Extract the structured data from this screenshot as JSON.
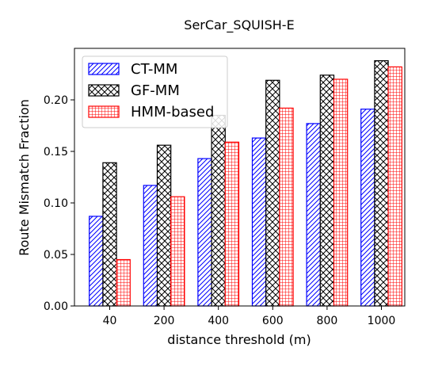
{
  "chart_data": {
    "type": "bar",
    "title": "SerCar_SQUISH-E",
    "xlabel": "distance threshold (m)",
    "ylabel": "Route Mismatch Fraction",
    "categories": [
      "40",
      "200",
      "400",
      "600",
      "800",
      "1000"
    ],
    "ylim": [
      0,
      0.25
    ],
    "yticks": [
      "0.00",
      "0.05",
      "0.10",
      "0.15",
      "0.20"
    ],
    "grid": false,
    "legend_position": "top-left",
    "series": [
      {
        "name": "CT-MM",
        "values": [
          0.087,
          0.117,
          0.143,
          0.163,
          0.177,
          0.191
        ],
        "color": "#0000ff",
        "hatch": "diagonal"
      },
      {
        "name": "GF-MM",
        "values": [
          0.139,
          0.156,
          0.185,
          0.219,
          0.224,
          0.238
        ],
        "color": "#000000",
        "hatch": "cross"
      },
      {
        "name": "HMM-based",
        "values": [
          0.045,
          0.106,
          0.159,
          0.192,
          0.22,
          0.232
        ],
        "color": "#ff0000",
        "hatch": "grid"
      }
    ]
  }
}
